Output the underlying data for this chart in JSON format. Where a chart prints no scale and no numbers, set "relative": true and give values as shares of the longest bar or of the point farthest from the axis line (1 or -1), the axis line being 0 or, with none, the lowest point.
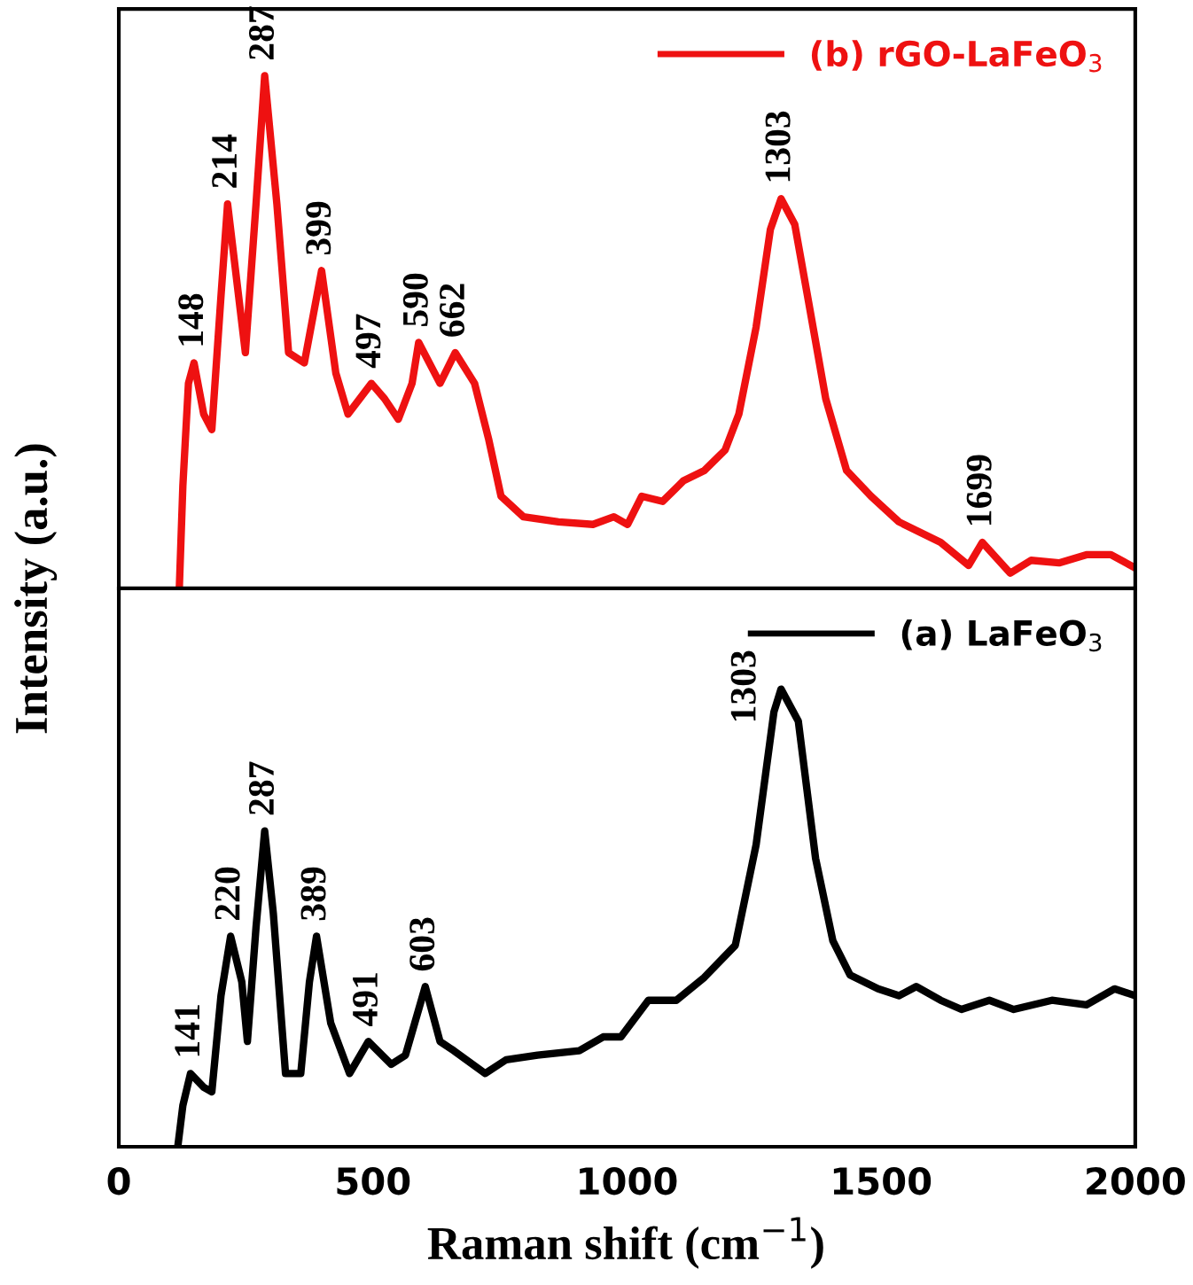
{
  "chart_data": [
    {
      "type": "line",
      "relative": true,
      "xlim": [
        0,
        2000
      ],
      "tick_labels": false,
      "legend": "top right",
      "grid": false,
      "marker": "none",
      "line_style": "solid",
      "series": [
        {
          "name": "(b) rGO-LaFeO$_{3}$",
          "color": "#ee1111",
          "x": [
            119,
            126,
            137,
            148,
            167,
            183,
            201,
            214,
            249,
            270,
            287,
            311,
            334,
            365,
            399,
            427,
            451,
            497,
            523,
            550,
            577,
            590,
            632,
            662,
            700,
            728,
            752,
            796,
            865,
            933,
            974,
            1001,
            1029,
            1070,
            1111,
            1152,
            1193,
            1220,
            1254,
            1282,
            1303,
            1330,
            1357,
            1391,
            1432,
            1480,
            1535,
            1576,
            1617,
            1672,
            1699,
            1754,
            1795,
            1850,
            1904,
            1952,
            2000
          ],
          "values": [
            0,
            0.2,
            0.4,
            0.44,
            0.34,
            0.31,
            0.57,
            0.75,
            0.46,
            0.75,
            1.0,
            0.75,
            0.46,
            0.44,
            0.62,
            0.42,
            0.34,
            0.4,
            0.37,
            0.33,
            0.4,
            0.48,
            0.4,
            0.46,
            0.4,
            0.29,
            0.18,
            0.14,
            0.13,
            0.125,
            0.14,
            0.125,
            0.18,
            0.17,
            0.21,
            0.23,
            0.27,
            0.34,
            0.51,
            0.7,
            0.76,
            0.71,
            0.56,
            0.37,
            0.23,
            0.18,
            0.13,
            0.11,
            0.09,
            0.045,
            0.09,
            0.03,
            0.055,
            0.05,
            0.066,
            0.066,
            0.04
          ]
        }
      ],
      "annotations": [
        {
          "text": "148",
          "x": 148,
          "y": 0.44
        },
        {
          "text": "214",
          "x": 214,
          "y": 0.75
        },
        {
          "text": "287",
          "x": 287,
          "y": 1.0
        },
        {
          "text": "399",
          "x": 399,
          "y": 0.62
        },
        {
          "text": "497",
          "x": 497,
          "y": 0.4
        },
        {
          "text": "590",
          "x": 590,
          "y": 0.48
        },
        {
          "text": "662",
          "x": 662,
          "y": 0.46
        },
        {
          "text": "1303",
          "x": 1303,
          "y": 0.76
        },
        {
          "text": "1699",
          "x": 1699,
          "y": 0.09
        }
      ]
    },
    {
      "type": "line",
      "relative": true,
      "xlim": [
        0,
        2000
      ],
      "xticks": [
        0,
        500,
        1000,
        1500,
        2000
      ],
      "tick_labels": "x",
      "legend": "top right",
      "grid": false,
      "marker": "none",
      "line_style": "solid",
      "xlabel": "Raman shift (cm$^{−1}$)",
      "ylabel": "Intensity (a.u.)",
      "series": [
        {
          "name": "(a) LaFeO$_{3}$",
          "color": "#000000",
          "x": [
            116,
            126,
            141,
            167,
            183,
            201,
            220,
            242,
            253,
            270,
            287,
            304,
            328,
            358,
            375,
            389,
            417,
            454,
            491,
            536,
            564,
            603,
            632,
            659,
            721,
            762,
            824,
            906,
            953,
            988,
            1042,
            1097,
            1152,
            1213,
            1254,
            1289,
            1303,
            1337,
            1371,
            1405,
            1439,
            1494,
            1535,
            1569,
            1617,
            1658,
            1713,
            1761,
            1836,
            1904,
            1959,
            2000
          ],
          "values": [
            0,
            0.09,
            0.16,
            0.13,
            0.12,
            0.33,
            0.46,
            0.36,
            0.23,
            0.48,
            0.69,
            0.51,
            0.16,
            0.16,
            0.36,
            0.46,
            0.27,
            0.16,
            0.23,
            0.18,
            0.2,
            0.35,
            0.23,
            0.21,
            0.16,
            0.19,
            0.2,
            0.21,
            0.24,
            0.24,
            0.32,
            0.32,
            0.37,
            0.44,
            0.66,
            0.95,
            1.0,
            0.93,
            0.63,
            0.45,
            0.375,
            0.345,
            0.33,
            0.35,
            0.32,
            0.3,
            0.32,
            0.3,
            0.32,
            0.31,
            0.345,
            0.33
          ]
        }
      ],
      "annotations": [
        {
          "text": "141",
          "x": 141,
          "y": 0.16
        },
        {
          "text": "220",
          "x": 220,
          "y": 0.46
        },
        {
          "text": "287",
          "x": 287,
          "y": 0.69
        },
        {
          "text": "389",
          "x": 389,
          "y": 0.46
        },
        {
          "text": "491",
          "x": 491,
          "y": 0.23
        },
        {
          "text": "603",
          "x": 603,
          "y": 0.35
        },
        {
          "text": "1303",
          "x": 1303,
          "y": 1.0
        }
      ]
    }
  ]
}
